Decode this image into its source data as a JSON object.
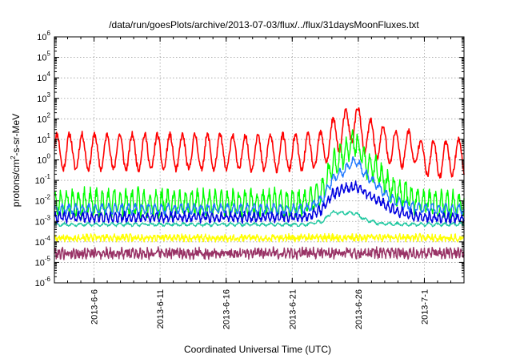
{
  "chart_data": {
    "type": "line",
    "title": "/data/run/goesPlots/archive/2013-07-03/flux/../flux/31daysMoonFluxes.txt",
    "xlabel": "Coordinated Universal Time (UTC)",
    "ylabel": {
      "base": "protons/cm",
      "sup": "2",
      "rest": "-s-sr-MeV"
    },
    "y_scale": "log",
    "ylim_exp": [
      -6,
      6
    ],
    "y_tick_exponents": [
      -6,
      -5,
      -4,
      -3,
      -2,
      -1,
      0,
      1,
      2,
      3,
      4,
      5,
      6
    ],
    "y_tick_base": "10",
    "xlim": [
      "2013-06-03",
      "2013-07-04"
    ],
    "x_ticks": [
      {
        "date": "2013-06-06",
        "label": "2013-6-6"
      },
      {
        "date": "2013-06-11",
        "label": "2013-6-11"
      },
      {
        "date": "2013-06-16",
        "label": "2013-6-16"
      },
      {
        "date": "2013-06-21",
        "label": "2013-6-21"
      },
      {
        "date": "2013-06-26",
        "label": "2013-6-26"
      },
      {
        "date": "2013-07-01",
        "label": "2013-7-1"
      }
    ],
    "grid": true,
    "legend": "none",
    "series": [
      {
        "color": "#ff0000",
        "width": 1.6,
        "base": [
          [
            0,
            0.4
          ],
          [
            19,
            0.35
          ],
          [
            20.3,
            0.5
          ],
          [
            21,
            1.1
          ],
          [
            22,
            1.5
          ],
          [
            22.8,
            1.9
          ],
          [
            23.5,
            1.2
          ],
          [
            24.5,
            0.9
          ],
          [
            25.5,
            0.6
          ],
          [
            26.5,
            0.5
          ],
          [
            27.3,
            0.7
          ],
          [
            27.6,
            0.2
          ],
          [
            29,
            0.0
          ],
          [
            30,
            0.1
          ],
          [
            31,
            0.2
          ]
        ],
        "amp": 0.85,
        "period": 0.95,
        "noise": 0.15,
        "phase": 0.3,
        "seed": 11
      },
      {
        "color": "#00ff00",
        "width": 1.4,
        "base": [
          [
            0,
            -2.1
          ],
          [
            19,
            -2.1
          ],
          [
            20.3,
            -1.6
          ],
          [
            21,
            -0.3
          ],
          [
            22,
            0.4
          ],
          [
            22.8,
            0.9
          ],
          [
            23.5,
            -0.1
          ],
          [
            24.5,
            -0.6
          ],
          [
            25.5,
            -1.4
          ],
          [
            26.5,
            -1.7
          ],
          [
            27.6,
            -2.0
          ],
          [
            29,
            -2.2
          ],
          [
            31,
            -2.2
          ]
        ],
        "amp": 0.55,
        "period": 0.45,
        "noise": 0.25,
        "phase": 1.1,
        "seed": 23
      },
      {
        "color": "#1e78ff",
        "width": 1.4,
        "base": [
          [
            0,
            -2.4
          ],
          [
            19,
            -2.4
          ],
          [
            20.3,
            -1.9
          ],
          [
            21,
            -1.0
          ],
          [
            22,
            -0.5
          ],
          [
            22.8,
            0.0
          ],
          [
            23.5,
            -0.7
          ],
          [
            24.5,
            -1.3
          ],
          [
            25.5,
            -1.9
          ],
          [
            26.5,
            -2.2
          ],
          [
            27.6,
            -2.35
          ],
          [
            29,
            -2.4
          ],
          [
            31,
            -2.4
          ]
        ],
        "amp": 0.2,
        "period": 0.5,
        "noise": 0.1,
        "phase": 0.2,
        "seed": 37
      },
      {
        "color": "#0000e0",
        "width": 1.5,
        "base": [
          [
            0,
            -2.8
          ],
          [
            19,
            -2.8
          ],
          [
            20.3,
            -2.4
          ],
          [
            21,
            -1.7
          ],
          [
            22,
            -1.4
          ],
          [
            22.8,
            -1.3
          ],
          [
            23.5,
            -1.6
          ],
          [
            24.5,
            -2.0
          ],
          [
            25.5,
            -2.4
          ],
          [
            26.5,
            -2.6
          ],
          [
            27.6,
            -2.8
          ],
          [
            29,
            -2.85
          ],
          [
            31,
            -2.85
          ]
        ],
        "amp": 0.18,
        "period": 0.35,
        "noise": 0.12,
        "phase": 0.7,
        "seed": 41
      },
      {
        "color": "#20c8a0",
        "width": 1.3,
        "base": [
          [
            0,
            -3.15
          ],
          [
            19,
            -3.15
          ],
          [
            20.3,
            -3.0
          ],
          [
            21,
            -2.55
          ],
          [
            22,
            -2.6
          ],
          [
            22.8,
            -2.6
          ],
          [
            23.5,
            -2.9
          ],
          [
            24.5,
            -3.1
          ],
          [
            26.5,
            -3.15
          ],
          [
            31,
            -3.15
          ]
        ],
        "amp": 0.06,
        "period": 0.6,
        "noise": 0.05,
        "phase": 0.0,
        "seed": 53
      },
      {
        "color": "#ffff00",
        "width": 1.4,
        "base": [
          [
            0,
            -3.8
          ],
          [
            31,
            -3.8
          ]
        ],
        "amp": 0.08,
        "period": 0.3,
        "noise": 0.13,
        "phase": 0.5,
        "seed": 67
      },
      {
        "color": "#993366",
        "width": 1.4,
        "base": [
          [
            0,
            -4.55
          ],
          [
            31,
            -4.55
          ]
        ],
        "amp": 0.1,
        "period": 0.28,
        "noise": 0.22,
        "phase": 0.9,
        "seed": 79
      }
    ]
  }
}
